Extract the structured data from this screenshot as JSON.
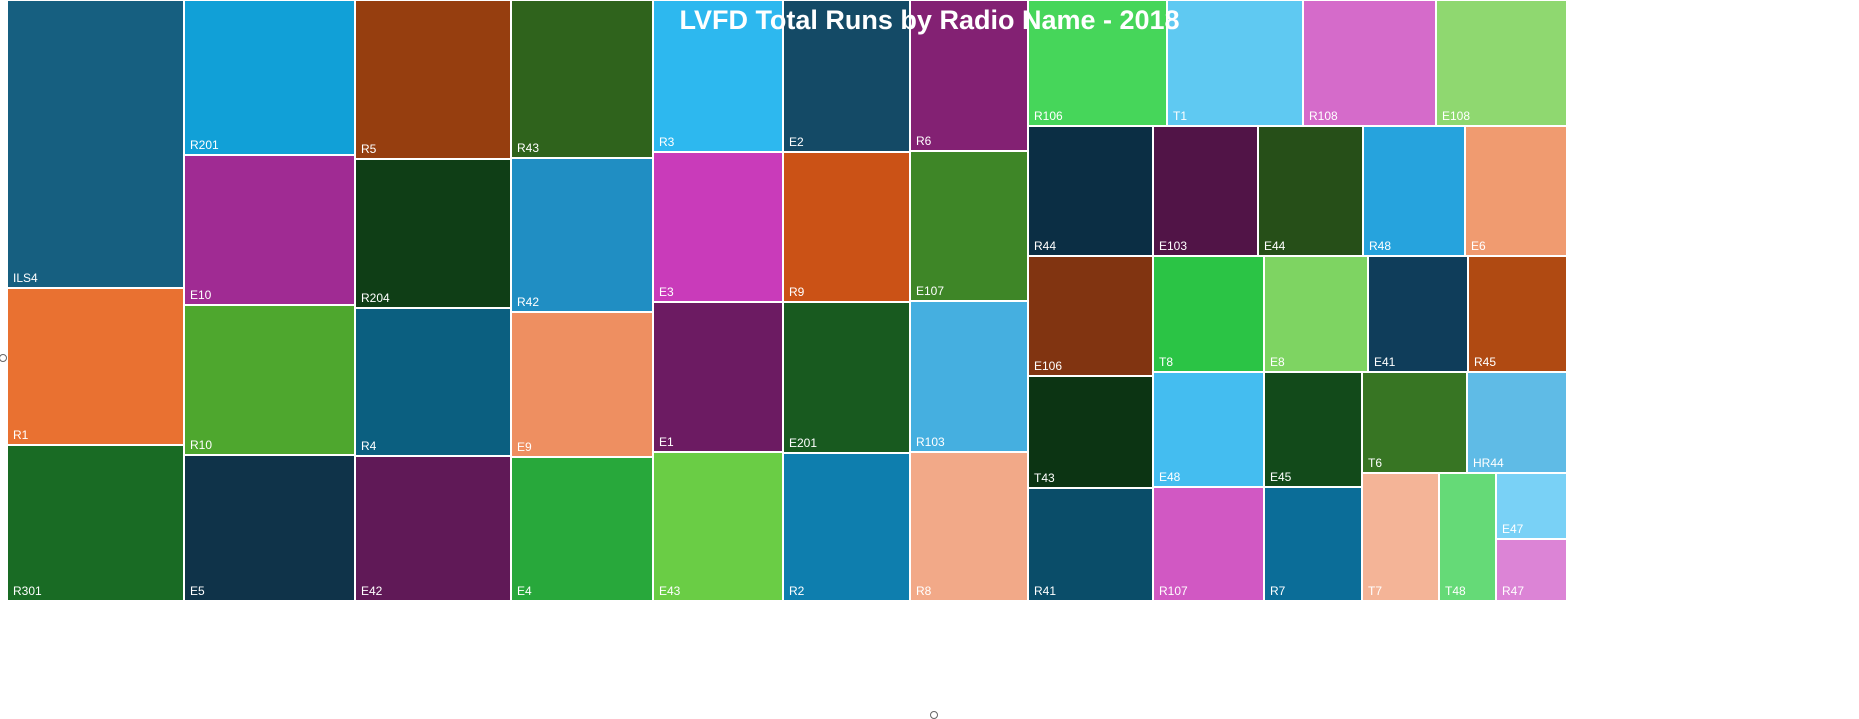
{
  "chart_data": {
    "type": "treemap",
    "title": "LVFD Total Runs by Radio Name - 2018",
    "tiles": [
      {
        "label": "ILS4",
        "color": "#165f80"
      },
      {
        "label": "R1",
        "color": "#e97131"
      },
      {
        "label": "R301",
        "color": "#196b24"
      },
      {
        "label": "R201",
        "color": "#11a0d7"
      },
      {
        "label": "E10",
        "color": "#a02b93"
      },
      {
        "label": "R10",
        "color": "#4ea72e"
      },
      {
        "label": "E5",
        "color": "#0f3349"
      },
      {
        "label": "R5",
        "color": "#963e0f"
      },
      {
        "label": "R204",
        "color": "#0f3e16"
      },
      {
        "label": "R4",
        "color": "#0b5f80"
      },
      {
        "label": "E42",
        "color": "#601957"
      },
      {
        "label": "R43",
        "color": "#2f631c"
      },
      {
        "label": "R42",
        "color": "#208ec3"
      },
      {
        "label": "E9",
        "color": "#ee8f61"
      },
      {
        "label": "E4",
        "color": "#28a83b"
      },
      {
        "label": "R3",
        "color": "#2db8ef"
      },
      {
        "label": "E3",
        "color": "#c93bba"
      },
      {
        "label": "E1",
        "color": "#6c1b62"
      },
      {
        "label": "E43",
        "color": "#6acd45"
      },
      {
        "label": "E2",
        "color": "#144a66"
      },
      {
        "label": "R9",
        "color": "#cb5216"
      },
      {
        "label": "E201",
        "color": "#185a1f"
      },
      {
        "label": "R2",
        "color": "#0e7eae"
      },
      {
        "label": "R6",
        "color": "#832173"
      },
      {
        "label": "E107",
        "color": "#3e8627"
      },
      {
        "label": "R103",
        "color": "#45afe0"
      },
      {
        "label": "R8",
        "color": "#f2a988"
      },
      {
        "label": "R106",
        "color": "#46d65a"
      },
      {
        "label": "T1",
        "color": "#5fc9f2"
      },
      {
        "label": "R108",
        "color": "#d56bca"
      },
      {
        "label": "E108",
        "color": "#8fd870"
      },
      {
        "label": "R44",
        "color": "#0b2e44"
      },
      {
        "label": "E103",
        "color": "#511447"
      },
      {
        "label": "E44",
        "color": "#264f18"
      },
      {
        "label": "R48",
        "color": "#26a3dd"
      },
      {
        "label": "E6",
        "color": "#f09b70"
      },
      {
        "label": "E106",
        "color": "#813411"
      },
      {
        "label": "T43",
        "color": "#0c3413"
      },
      {
        "label": "R41",
        "color": "#0a4d69"
      },
      {
        "label": "T8",
        "color": "#2bc445"
      },
      {
        "label": "E48",
        "color": "#44bdf0"
      },
      {
        "label": "R107",
        "color": "#d158c3"
      },
      {
        "label": "E8",
        "color": "#7ed462"
      },
      {
        "label": "E45",
        "color": "#124a1a"
      },
      {
        "label": "R7",
        "color": "#0b6d98"
      },
      {
        "label": "E41",
        "color": "#0f3d5a"
      },
      {
        "label": "T6",
        "color": "#377523"
      },
      {
        "label": "T7",
        "color": "#f4b497"
      },
      {
        "label": "T48",
        "color": "#65da77"
      },
      {
        "label": "R45",
        "color": "#b04a12"
      },
      {
        "label": "HR44",
        "color": "#5fbbe6"
      },
      {
        "label": "E47",
        "color": "#79d1f6"
      },
      {
        "label": "R47",
        "color": "#dc84d6"
      }
    ]
  }
}
